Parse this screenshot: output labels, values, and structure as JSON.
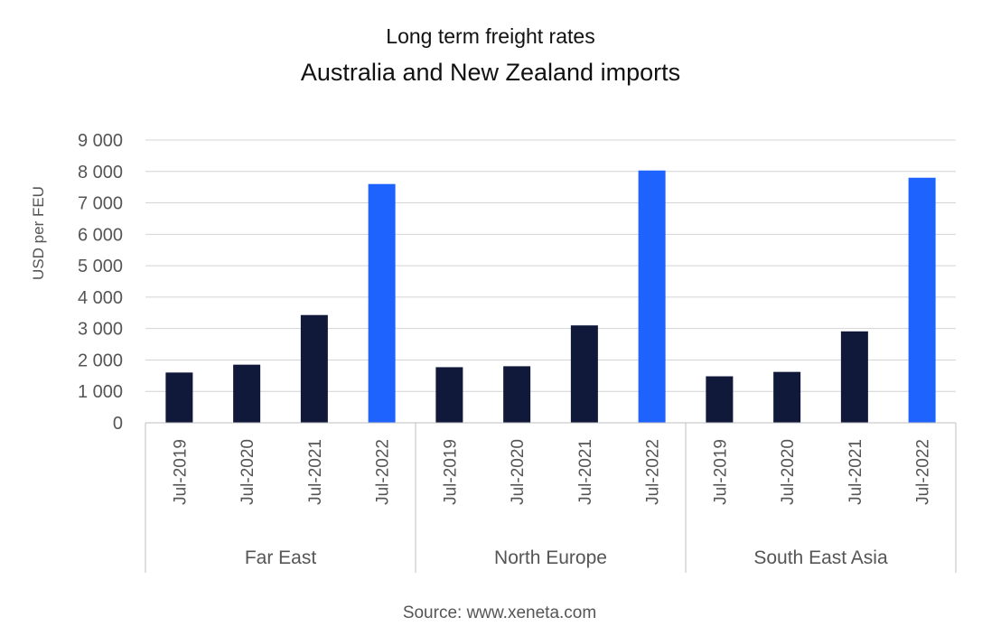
{
  "chart_data": {
    "type": "bar",
    "subtitle": "Long term freight rates",
    "title": "Australia and New Zealand imports",
    "ylabel": "USD per FEU",
    "ylim": [
      0,
      9000
    ],
    "yticks": [
      0,
      1000,
      2000,
      3000,
      4000,
      5000,
      6000,
      7000,
      8000,
      9000
    ],
    "ytick_labels": [
      "0",
      "1 000",
      "2 000",
      "3 000",
      "4 000",
      "5 000",
      "6 000",
      "7 000",
      "8 000",
      "9 000"
    ],
    "grid": true,
    "legend": "none",
    "source": "Source: www.xeneta.com",
    "colors": {
      "past": "#11193a",
      "latest": "#1f63ff"
    },
    "groups": [
      {
        "name": "Far East",
        "categories": [
          "Jul-2019",
          "Jul-2020",
          "Jul-2021",
          "Jul-2022"
        ],
        "values": [
          1600,
          1850,
          3430,
          7600
        ]
      },
      {
        "name": "North Europe",
        "categories": [
          "Jul-2019",
          "Jul-2020",
          "Jul-2021",
          "Jul-2022"
        ],
        "values": [
          1770,
          1800,
          3100,
          8030
        ]
      },
      {
        "name": "South East Asia",
        "categories": [
          "Jul-2019",
          "Jul-2020",
          "Jul-2021",
          "Jul-2022"
        ],
        "values": [
          1480,
          1620,
          2910,
          7800
        ]
      }
    ]
  }
}
